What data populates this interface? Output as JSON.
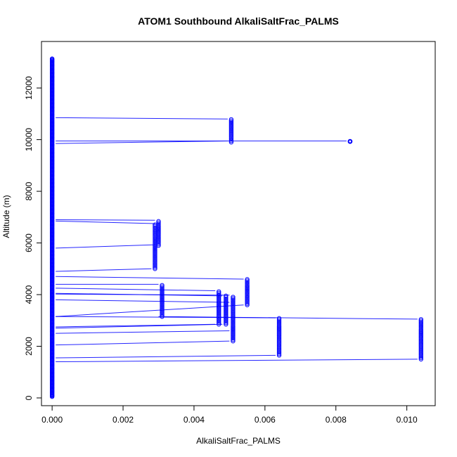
{
  "chart_data": {
    "type": "scatter",
    "title": "ATOM1 Southbound AlkaliSaltFrac_PALMS",
    "xlabel": "AlkaliSaltFrac_PALMS",
    "ylabel": "Altitude (m)",
    "xlim": [
      -0.0003,
      0.0108
    ],
    "ylim": [
      -300,
      13800
    ],
    "x_ticks": [
      0.0,
      0.002,
      0.004,
      0.006,
      0.008,
      0.01
    ],
    "x_tick_labels": [
      "0.000",
      "0.002",
      "0.004",
      "0.006",
      "0.008",
      "0.010"
    ],
    "y_ticks": [
      0,
      2000,
      4000,
      6000,
      8000,
      10000,
      12000
    ],
    "y_tick_labels": [
      "0",
      "2000",
      "4000",
      "6000",
      "8000",
      "10000",
      "12000"
    ],
    "point_color": "#0000ff",
    "line_color": "#0000ff",
    "grid": false,
    "legend": "none",
    "baseline_x": 0.0,
    "baseline_y_range": [
      50,
      13150
    ],
    "clusters": [
      {
        "x": 0.00505,
        "y_min": 9900,
        "y_max": 10800
      },
      {
        "x": 0.0084,
        "y_min": 9930,
        "y_max": 9930
      },
      {
        "x": 0.003,
        "y_min": 5900,
        "y_max": 6880
      },
      {
        "x": 0.0029,
        "y_min": 5000,
        "y_max": 6750
      },
      {
        "x": 0.0055,
        "y_min": 3600,
        "y_max": 4600
      },
      {
        "x": 0.0031,
        "y_min": 3150,
        "y_max": 4400
      },
      {
        "x": 0.0047,
        "y_min": 2850,
        "y_max": 4150
      },
      {
        "x": 0.0049,
        "y_min": 2850,
        "y_max": 3950
      },
      {
        "x": 0.0051,
        "y_min": 2200,
        "y_max": 3950
      },
      {
        "x": 0.0064,
        "y_min": 1650,
        "y_max": 3100
      },
      {
        "x": 0.0104,
        "y_min": 1500,
        "y_max": 3050
      }
    ],
    "segments": [
      {
        "x1": 0.0001,
        "y1": 10850,
        "x2": 0.00495,
        "y2": 10800
      },
      {
        "x1": 0.0001,
        "y1": 9850,
        "x2": 0.00495,
        "y2": 9950
      },
      {
        "x1": 0.0001,
        "y1": 9950,
        "x2": 0.0083,
        "y2": 9950
      },
      {
        "x1": 0.0001,
        "y1": 6850,
        "x2": 0.0029,
        "y2": 6750
      },
      {
        "x1": 0.0001,
        "y1": 6900,
        "x2": 0.0029,
        "y2": 6880
      },
      {
        "x1": 0.0001,
        "y1": 5800,
        "x2": 0.0029,
        "y2": 5930
      },
      {
        "x1": 0.0001,
        "y1": 4900,
        "x2": 0.0028,
        "y2": 5000
      },
      {
        "x1": 0.0001,
        "y1": 4700,
        "x2": 0.0054,
        "y2": 4600
      },
      {
        "x1": 0.0001,
        "y1": 4400,
        "x2": 0.003,
        "y2": 4400
      },
      {
        "x1": 0.0001,
        "y1": 4250,
        "x2": 0.0046,
        "y2": 4150
      },
      {
        "x1": 0.0001,
        "y1": 4050,
        "x2": 0.0048,
        "y2": 3950
      },
      {
        "x1": 0.0001,
        "y1": 4020,
        "x2": 0.005,
        "y2": 3980
      },
      {
        "x1": 0.0001,
        "y1": 3800,
        "x2": 0.005,
        "y2": 3700
      },
      {
        "x1": 0.0001,
        "y1": 3150,
        "x2": 0.0054,
        "y2": 3600
      },
      {
        "x1": 0.0001,
        "y1": 3150,
        "x2": 0.0063,
        "y2": 3100
      },
      {
        "x1": 0.003,
        "y1": 3150,
        "x2": 0.0103,
        "y2": 3050
      },
      {
        "x1": 0.0001,
        "y1": 2750,
        "x2": 0.0046,
        "y2": 2850
      },
      {
        "x1": 0.0001,
        "y1": 2700,
        "x2": 0.0048,
        "y2": 2850
      },
      {
        "x1": 0.0001,
        "y1": 2500,
        "x2": 0.005,
        "y2": 2600
      },
      {
        "x1": 0.0001,
        "y1": 2050,
        "x2": 0.005,
        "y2": 2200
      },
      {
        "x1": 0.0001,
        "y1": 1550,
        "x2": 0.0063,
        "y2": 1650
      },
      {
        "x1": 0.0001,
        "y1": 1400,
        "x2": 0.0103,
        "y2": 1500
      }
    ]
  }
}
